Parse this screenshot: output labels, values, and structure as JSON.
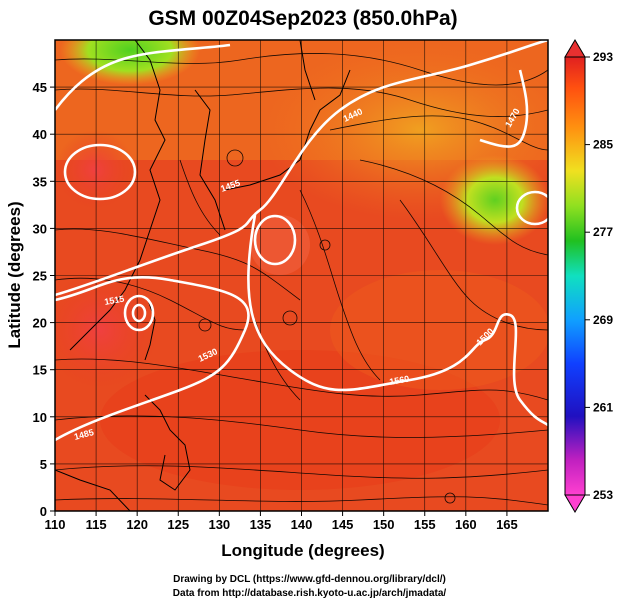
{
  "title": "GSM 00Z04Sep2023 (850.0hPa)",
  "xlabel": "Longitude (degrees)",
  "ylabel": "Latitude  (degrees)",
  "credit_line1": "Drawing by DCL (https://www.gfd-dennou.org/library/dcl/)",
  "credit_line2": "Data from http://database.rish.kyoto-u.ac.jp/arch/jmadata/",
  "x_ticks": [
    "110",
    "115",
    "120",
    "125",
    "130",
    "135",
    "140",
    "145",
    "150",
    "155",
    "160",
    "165"
  ],
  "y_ticks": [
    "0",
    "5",
    "10",
    "15",
    "20",
    "25",
    "30",
    "35",
    "40",
    "45"
  ],
  "colorbar": {
    "ticks": [
      "253",
      "261",
      "269",
      "277",
      "285",
      "293"
    ],
    "colors": [
      "#ff40d0",
      "#c020c0",
      "#2010c0",
      "#1040ff",
      "#10a0ff",
      "#10e0c0",
      "#20c020",
      "#90e020",
      "#f0e020",
      "#ff9010",
      "#ff5010",
      "#e02020"
    ]
  },
  "contour_labels": [
    "1455",
    "1440",
    "1470",
    "1560",
    "1530",
    "1500",
    "1485",
    "1515"
  ]
}
